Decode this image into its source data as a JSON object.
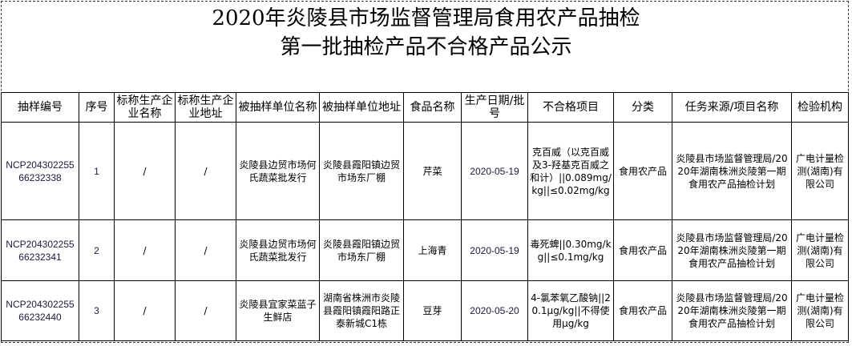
{
  "title_line1": "2020年炎陵县市场监督管理局食用农产品抽检",
  "title_line2": "第一批抽检产品不合格产品公示",
  "columns": [
    "抽样编号",
    "序号",
    "标称生产企业名称",
    "标称生产企业地址",
    "被抽样单位名称",
    "被抽样单位地址",
    "食品名称",
    "生产日期/批号",
    "不合格项目",
    "分类",
    "任务来源/项目名称",
    "检验机构"
  ],
  "rows": [
    [
      "NCP20430225566232338",
      "1",
      "/",
      "/",
      "炎陵县边贸市场何氏蔬菜批发行",
      "炎陵县霞阳镇边贸市场东厂棚",
      "芹菜",
      "2020-05-19",
      "克百威（以克百威及3-羟基克百威之和计）||0.089mg/kg||≤0.02mg/kg",
      "食用农产品",
      "炎陵县市场监督管理局/2020年湖南株洲炎陵第一期食用农产品抽检计划",
      "广电计量检测(湖南)有限公司"
    ],
    [
      "NCP20430225566232341",
      "2",
      "/",
      "/",
      "炎陵县边贸市场何氏蔬菜批发行",
      "炎陵县霞阳镇边贸市场东厂棚",
      "上海青",
      "2020-05-19",
      "毒死蜱||0.30mg/kg||≤0.1mg/kg",
      "食用农产品",
      "炎陵县市场监督管理局/2020年湖南株洲炎陵第一期食用农产品抽检计划",
      "广电计量检测(湖南)有限公司"
    ],
    [
      "NCP20430225566232440",
      "3",
      "/",
      "/",
      "炎陵县宜家菜蓝子生鲜店",
      "湖南省株洲市炎陵县霞阳镇霞阳路正泰新城C1栋",
      "豆芽",
      "2020-05-20",
      "4-氯苯氧乙酸钠||20.1μg/kg||不得使用μg/kg",
      "食用农产品",
      "炎陵县市场监督管理局/2020年湖南株洲炎陵第一期食用农产品抽检计划",
      "广电计量检测(湖南)有限公司"
    ]
  ]
}
